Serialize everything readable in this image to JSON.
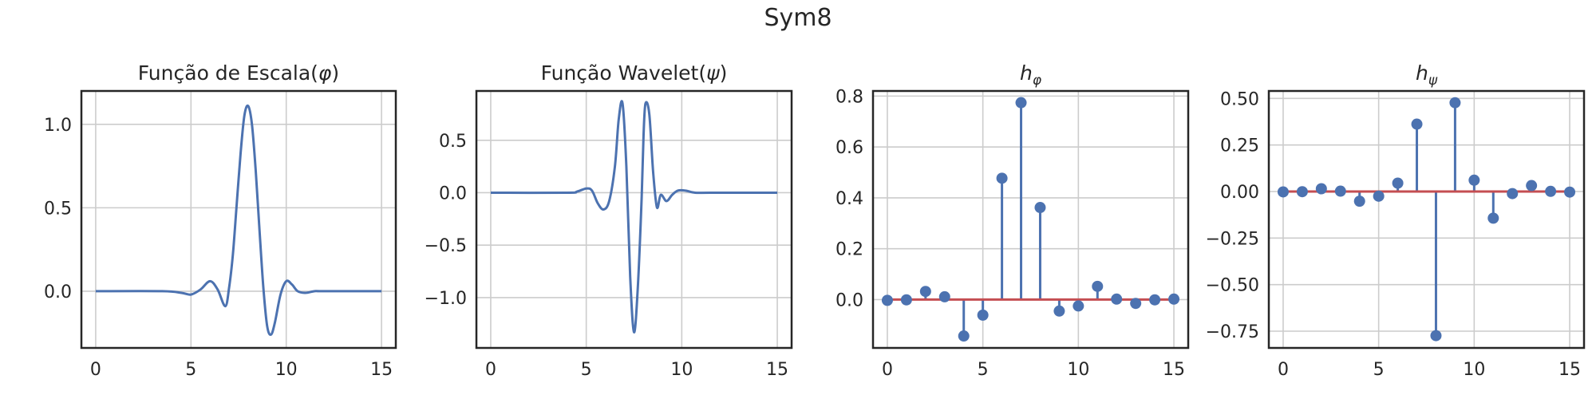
{
  "figure": {
    "suptitle": "Sym8",
    "colors": {
      "line": "#4c72b0",
      "baseline": "#c44e52",
      "grid": "#cccccc",
      "frame": "#262626"
    }
  },
  "chart_data": [
    {
      "type": "line",
      "title": "Função de Escala(φ)",
      "title_parts": {
        "text": "Função de Escala(",
        "symbol": "φ",
        "close": ")"
      },
      "xlim": [
        -0.75,
        15.75
      ],
      "ylim": [
        -0.34,
        1.2
      ],
      "xticks": [
        0,
        5,
        10,
        15
      ],
      "yticks": [
        0.0,
        0.5,
        1.0
      ],
      "ytick_labels": [
        "0.0",
        "0.5",
        "1.0"
      ],
      "grid": true,
      "series": [
        {
          "x": [
            0,
            3.5,
            4.5,
            5.0,
            5.5,
            6.0,
            6.4,
            6.8,
            7.0,
            7.2,
            7.4,
            7.6,
            7.8,
            8.0,
            8.2,
            8.4,
            8.6,
            8.8,
            9.0,
            9.2,
            9.4,
            9.7,
            10.0,
            10.3,
            10.6,
            11.0,
            11.5,
            12.0,
            15.0
          ],
          "y": [
            0.0,
            0.0,
            -0.01,
            -0.02,
            0.01,
            0.06,
            0.01,
            -0.09,
            0.02,
            0.22,
            0.52,
            0.82,
            1.05,
            1.11,
            1.0,
            0.72,
            0.36,
            0.02,
            -0.21,
            -0.26,
            -0.19,
            -0.02,
            0.06,
            0.04,
            0.0,
            -0.01,
            0.0,
            0.0,
            0.0
          ]
        }
      ]
    },
    {
      "type": "line",
      "title": "Função Wavelet(ψ)",
      "title_parts": {
        "text": "Função Wavelet(",
        "symbol": "ψ",
        "close": ")"
      },
      "xlim": [
        -0.75,
        15.75
      ],
      "ylim": [
        -1.48,
        0.97
      ],
      "xticks": [
        0,
        5,
        10,
        15
      ],
      "yticks": [
        -1.0,
        -0.5,
        0.0,
        0.5
      ],
      "ytick_labels": [
        "−1.0",
        "−0.5",
        "0.0",
        "0.5"
      ],
      "grid": true,
      "series": [
        {
          "x": [
            0,
            4.0,
            4.5,
            5.0,
            5.3,
            5.6,
            5.9,
            6.2,
            6.5,
            6.7,
            6.9,
            7.1,
            7.3,
            7.5,
            7.7,
            7.9,
            8.0,
            8.1,
            8.3,
            8.5,
            8.7,
            8.9,
            9.2,
            9.5,
            9.8,
            10.2,
            10.7,
            11.5,
            15.0
          ],
          "y": [
            0.0,
            0.0,
            0.01,
            0.04,
            0.02,
            -0.1,
            -0.16,
            -0.08,
            0.25,
            0.7,
            0.85,
            0.25,
            -0.8,
            -1.33,
            -0.9,
            -0.05,
            0.55,
            0.85,
            0.75,
            0.2,
            -0.14,
            -0.02,
            -0.08,
            -0.02,
            0.02,
            0.02,
            0.0,
            0.0,
            0.0
          ]
        }
      ]
    },
    {
      "type": "stem",
      "title": "hφ",
      "title_parts": {
        "text": "h",
        "symbol": "φ"
      },
      "xlim": [
        -0.75,
        15.75
      ],
      "ylim": [
        -0.19,
        0.82
      ],
      "xticks": [
        0,
        5,
        10,
        15
      ],
      "yticks": [
        0.0,
        0.2,
        0.4,
        0.6,
        0.8
      ],
      "ytick_labels": [
        "0.0",
        "0.2",
        "0.4",
        "0.6",
        "0.8"
      ],
      "grid": true,
      "x": [
        0,
        1,
        2,
        3,
        4,
        5,
        6,
        7,
        8,
        9,
        10,
        11,
        12,
        13,
        14,
        15
      ],
      "values": [
        -0.003,
        -0.001,
        0.032,
        0.011,
        -0.143,
        -0.061,
        0.477,
        0.774,
        0.362,
        -0.045,
        -0.025,
        0.052,
        0.002,
        -0.015,
        -0.001,
        0.002
      ]
    },
    {
      "type": "stem",
      "title": "hψ",
      "title_parts": {
        "text": "h",
        "symbol": "ψ"
      },
      "xlim": [
        -0.75,
        15.75
      ],
      "ylim": [
        -0.84,
        0.54
      ],
      "xticks": [
        0,
        5,
        10,
        15
      ],
      "yticks": [
        -0.75,
        -0.5,
        -0.25,
        0.0,
        0.25,
        0.5
      ],
      "ytick_labels": [
        "−0.75",
        "−0.50",
        "−0.25",
        "0.00",
        "0.25",
        "0.50"
      ],
      "grid": true,
      "x": [
        0,
        1,
        2,
        3,
        4,
        5,
        6,
        7,
        8,
        9,
        10,
        11,
        12,
        13,
        14,
        15
      ],
      "values": [
        -0.002,
        -0.001,
        0.015,
        0.002,
        -0.052,
        -0.025,
        0.045,
        0.362,
        -0.774,
        0.477,
        0.061,
        -0.143,
        -0.011,
        0.032,
        0.001,
        -0.003
      ]
    }
  ]
}
